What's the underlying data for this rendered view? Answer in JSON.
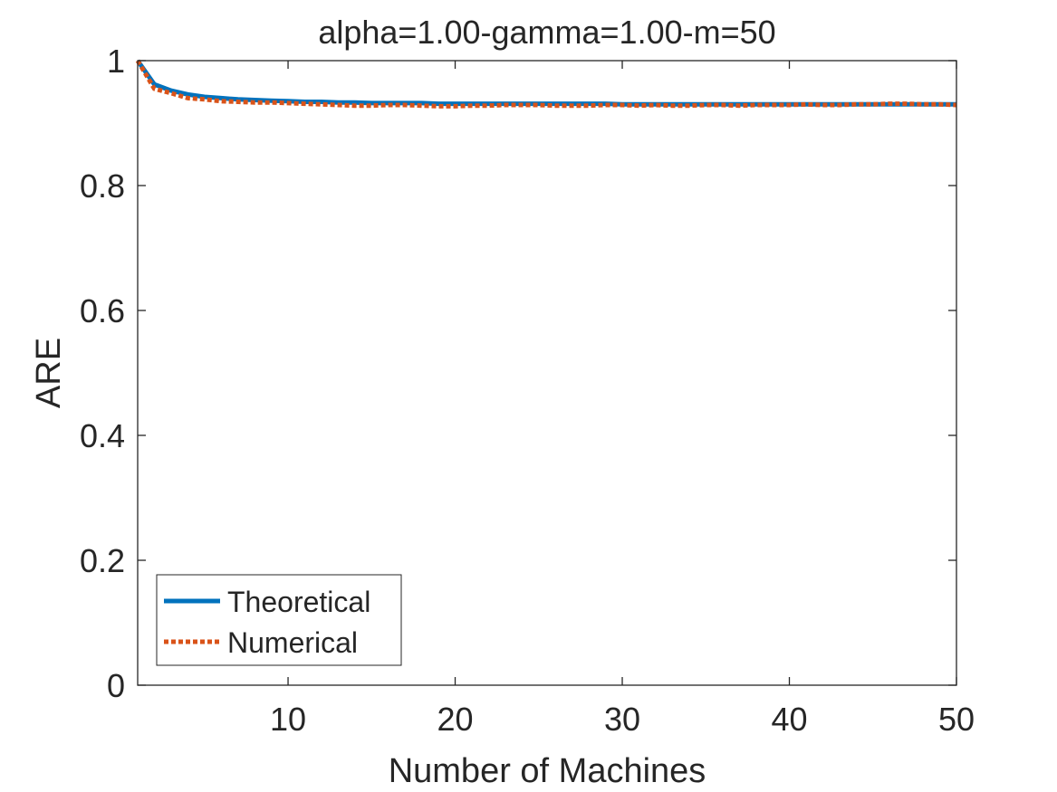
{
  "chart_data": {
    "type": "line",
    "title": "alpha=1.00-gamma=1.00-m=50",
    "xlabel": "Number of Machines",
    "ylabel": "ARE",
    "xlim": [
      1,
      50
    ],
    "ylim": [
      0,
      1
    ],
    "x_ticks": [
      10,
      20,
      30,
      40,
      50
    ],
    "y_ticks": [
      0,
      0.2,
      0.4,
      0.6,
      0.8,
      1
    ],
    "y_tick_labels": [
      "0",
      "0.2",
      "0.4",
      "0.6",
      "0.8",
      "1"
    ],
    "grid": false,
    "legend_position": "bottom-left",
    "x": [
      1,
      2,
      3,
      4,
      5,
      6,
      7,
      8,
      9,
      10,
      11,
      12,
      13,
      14,
      15,
      16,
      17,
      18,
      19,
      20,
      21,
      22,
      23,
      24,
      25,
      26,
      27,
      28,
      29,
      30,
      31,
      32,
      33,
      34,
      35,
      36,
      37,
      38,
      39,
      40,
      41,
      42,
      43,
      44,
      45,
      46,
      47,
      48,
      49,
      50
    ],
    "series": [
      {
        "name": "Theoretical",
        "color": "#0072BD",
        "style": "solid",
        "values": [
          1.0,
          0.962,
          0.952,
          0.946,
          0.942,
          0.94,
          0.938,
          0.937,
          0.936,
          0.935,
          0.934,
          0.934,
          0.933,
          0.933,
          0.932,
          0.932,
          0.932,
          0.932,
          0.931,
          0.931,
          0.931,
          0.931,
          0.931,
          0.931,
          0.931,
          0.931,
          0.931,
          0.931,
          0.931,
          0.93,
          0.93,
          0.93,
          0.93,
          0.93,
          0.93,
          0.93,
          0.93,
          0.93,
          0.93,
          0.93,
          0.93,
          0.93,
          0.93,
          0.93,
          0.93,
          0.93,
          0.93,
          0.93,
          0.93,
          0.93
        ]
      },
      {
        "name": "Numerical",
        "color": "#D95319",
        "style": "dotted",
        "values": [
          1.0,
          0.955,
          0.948,
          0.94,
          0.938,
          0.935,
          0.934,
          0.933,
          0.933,
          0.932,
          0.931,
          0.93,
          0.929,
          0.928,
          0.928,
          0.929,
          0.929,
          0.928,
          0.927,
          0.927,
          0.928,
          0.928,
          0.929,
          0.929,
          0.929,
          0.928,
          0.928,
          0.928,
          0.929,
          0.929,
          0.928,
          0.929,
          0.928,
          0.928,
          0.929,
          0.929,
          0.928,
          0.929,
          0.929,
          0.929,
          0.93,
          0.929,
          0.929,
          0.93,
          0.93,
          0.931,
          0.931,
          0.93,
          0.93,
          0.929
        ]
      }
    ]
  }
}
